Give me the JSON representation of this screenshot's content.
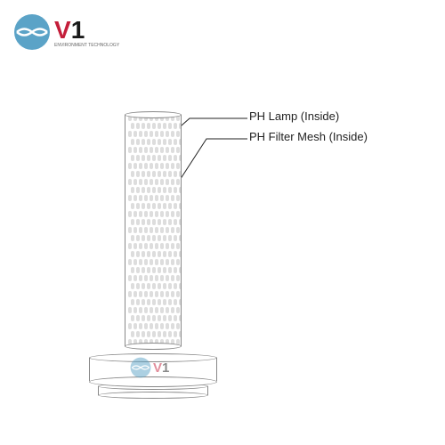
{
  "logo": {
    "brand_text": "V1",
    "brand_subtext": "ENVIRONMENT TECHNOLOGY",
    "v_color": "#c41e3a",
    "one_color": "#1a1a1a",
    "icon_color": "#5ba3c7"
  },
  "diagram": {
    "label1": "PH Lamp (Inside)",
    "label2": "PH Filter Mesh (Inside)",
    "label_color": "#222222",
    "line_color": "#888888",
    "mesh_dot_color": "#dddddd"
  },
  "watermark": {
    "text": "V1",
    "v_color": "#c41e3a",
    "one_color": "#1a1a1a",
    "icon_color": "#5ba3c7"
  }
}
